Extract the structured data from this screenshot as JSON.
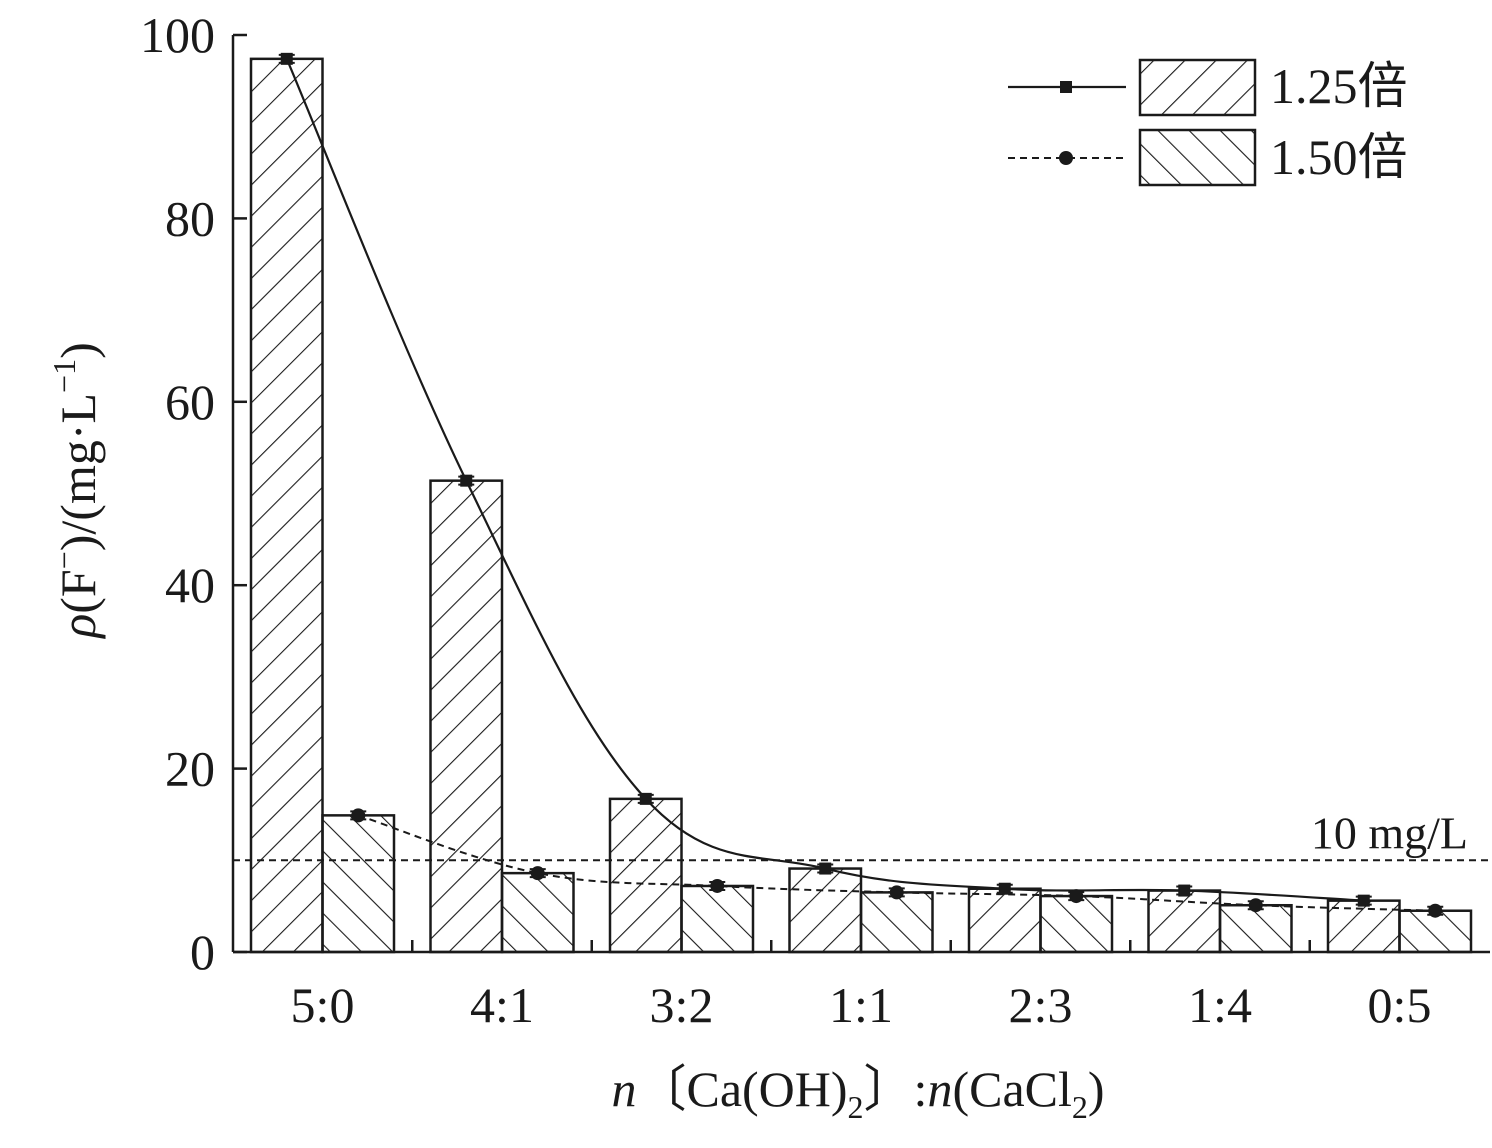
{
  "chart_data": {
    "type": "bar",
    "xlabel_parts": {
      "n1": "n",
      "lbr": "〔",
      "caoh": "Ca(OH)",
      "sub1": "2",
      "rbr": "〕",
      "colon": ":",
      "n2": "n",
      "cacl": "(CaCl",
      "sub2": "2",
      "close": ")"
    },
    "ylabel_parts": {
      "rho": "ρ",
      "f_open": "(F",
      "minus": "−",
      "mid": ")/(mg·L",
      "neg1": "−1",
      "close": ")"
    },
    "categories": [
      "5:0",
      "4:1",
      "3:2",
      "1:1",
      "2:3",
      "1:4",
      "0:5"
    ],
    "ylim": [
      0,
      100
    ],
    "yticks": [
      "0",
      "20",
      "40",
      "60",
      "80",
      "100"
    ],
    "grid": false,
    "legend_position": "top-right",
    "series": [
      {
        "name": "1.25倍",
        "values": [
          97.4,
          51.4,
          16.7,
          9.1,
          6.9,
          6.7,
          5.6
        ],
        "line": "solid",
        "marker": "square",
        "hatch": "forward-diagonal"
      },
      {
        "name": "1.50倍",
        "values": [
          14.9,
          8.6,
          7.2,
          6.5,
          6.1,
          5.1,
          4.5
        ],
        "line": "dashed",
        "marker": "circle",
        "hatch": "backward-diagonal"
      }
    ],
    "reference_line": {
      "value": 10,
      "label": "10 mg/L"
    },
    "colors": {
      "ink": "#1a1a1a",
      "background": "#ffffff"
    }
  }
}
